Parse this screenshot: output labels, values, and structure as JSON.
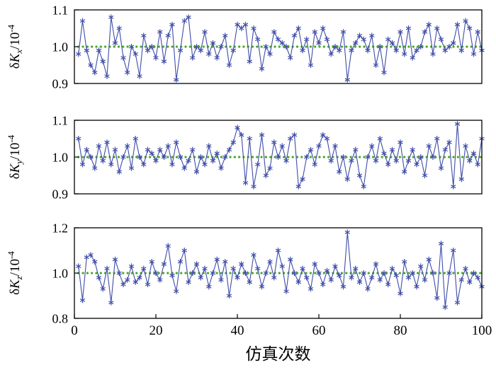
{
  "colors": {
    "line": "#3f4da8",
    "marker": "#3f4da8",
    "reference": "#4ea72e",
    "axis": "#000000",
    "background": "#ffffff"
  },
  "chart_data": [
    {
      "type": "line",
      "ylabel": {
        "prefix": "δ",
        "symbol": "K",
        "sub": "x",
        "unit": "/10",
        "exp": "-4"
      },
      "ylim": [
        0.9,
        1.1
      ],
      "yticks": [
        0.9,
        1.0,
        1.1
      ],
      "x_range": [
        0,
        100
      ],
      "xticks": [
        0,
        20,
        40,
        60,
        80,
        100
      ],
      "show_x_axis": false,
      "xlabel": "",
      "reference_value": 1.0,
      "series": [
        {
          "name": "deltaKx",
          "values": [
            0.98,
            1.07,
            0.99,
            0.95,
            0.93,
            0.99,
            0.96,
            0.92,
            1.08,
            1.01,
            1.05,
            0.97,
            0.93,
            1.0,
            0.98,
            0.92,
            1.03,
            0.99,
            1.0,
            0.97,
            1.04,
            0.96,
            1.03,
            1.06,
            0.91,
            0.99,
            1.07,
            1.08,
            0.97,
            1.0,
            0.99,
            1.04,
            0.98,
            1.01,
            0.97,
            1.0,
            1.03,
            0.95,
            0.99,
            1.06,
            1.05,
            1.06,
            0.96,
            1.05,
            1.02,
            0.94,
            1.0,
            0.98,
            1.04,
            1.02,
            1.01,
            1.0,
            0.97,
            1.03,
            1.05,
            0.99,
            1.02,
            0.95,
            1.04,
            1.01,
            1.05,
            1.02,
            0.98,
            1.0,
            0.99,
            1.04,
            0.91,
            0.99,
            1.01,
            1.03,
            1.02,
            0.99,
            1.03,
            0.95,
            1.0,
            0.93,
            1.02,
            1.01,
            0.99,
            1.04,
            0.98,
            1.05,
            0.97,
            0.99,
            1.0,
            1.04,
            1.06,
            0.98,
            1.05,
            1.02,
            0.99,
            1.0,
            1.01,
            1.06,
            0.99,
            1.07,
            1.05,
            0.98,
            1.04,
            0.99
          ]
        }
      ]
    },
    {
      "type": "line",
      "ylabel": {
        "prefix": "δ",
        "symbol": "K",
        "sub": "y",
        "unit": "/10",
        "exp": "-4"
      },
      "ylim": [
        0.9,
        1.1
      ],
      "yticks": [
        0.9,
        1.0,
        1.1
      ],
      "x_range": [
        0,
        100
      ],
      "xticks": [
        0,
        20,
        40,
        60,
        80,
        100
      ],
      "show_x_axis": false,
      "xlabel": "",
      "reference_value": 1.0,
      "series": [
        {
          "name": "deltaKy",
          "values": [
            1.05,
            0.98,
            1.02,
            1.0,
            0.97,
            1.03,
            0.99,
            1.04,
            0.98,
            1.02,
            0.96,
            1.0,
            1.03,
            0.97,
            1.05,
            1.0,
            0.98,
            1.02,
            1.01,
            0.99,
            1.02,
            1.0,
            1.03,
            0.98,
            1.04,
            1.0,
            0.97,
            0.99,
            1.02,
            0.96,
            1.0,
            0.98,
            1.03,
            0.99,
            1.01,
            0.97,
            1.0,
            1.02,
            1.04,
            1.08,
            1.06,
            0.93,
            1.05,
            0.92,
            0.98,
            1.06,
            0.95,
            0.97,
            1.04,
            1.0,
            1.03,
            0.99,
            1.05,
            1.06,
            0.92,
            0.94,
            1.0,
            1.02,
            0.98,
            1.03,
            1.06,
            1.05,
            0.99,
            1.03,
            0.96,
            1.0,
            0.94,
            0.99,
            1.02,
            0.95,
            0.92,
            1.0,
            1.03,
            0.99,
            1.05,
            1.01,
            0.98,
            1.02,
            0.99,
            1.04,
            0.96,
            0.99,
            1.02,
            0.98,
            1.0,
            0.95,
            1.03,
            1.0,
            1.05,
            0.97,
            1.02,
            1.04,
            0.92,
            1.09,
            0.94,
            1.03,
            0.99,
            1.01,
            0.98,
            1.05
          ]
        }
      ]
    },
    {
      "type": "line",
      "ylabel": {
        "prefix": "δ",
        "symbol": "K",
        "sub": "z",
        "unit": "/10",
        "exp": "-4"
      },
      "ylim": [
        0.8,
        1.2
      ],
      "yticks": [
        0.8,
        1.0,
        1.2
      ],
      "x_range": [
        0,
        100
      ],
      "xticks": [
        0,
        20,
        40,
        60,
        80,
        100
      ],
      "show_x_axis": true,
      "xlabel": "仿真次数",
      "reference_value": 1.0,
      "series": [
        {
          "name": "deltaKz",
          "values": [
            1.03,
            0.88,
            1.07,
            1.08,
            1.05,
            0.98,
            0.93,
            1.02,
            0.87,
            1.06,
            1.0,
            0.95,
            0.97,
            1.03,
            0.96,
            0.98,
            1.02,
            0.95,
            1.05,
            1.0,
            0.97,
            1.04,
            1.12,
            0.99,
            0.92,
            1.05,
            1.1,
            0.96,
            1.0,
            1.04,
            0.98,
            1.02,
            0.94,
            1.0,
            1.06,
            0.97,
            1.05,
            0.9,
            1.02,
            0.98,
            1.04,
            1.0,
            0.96,
            1.08,
            1.02,
            0.94,
            1.0,
            1.05,
            0.98,
            1.1,
            1.03,
            0.92,
            1.06,
            1.0,
            0.96,
            1.02,
            0.98,
            0.93,
            1.04,
            1.0,
            0.95,
            1.01,
            0.97,
            1.03,
            0.99,
            0.94,
            1.18,
            0.98,
            1.02,
            0.96,
            1.0,
            0.93,
            0.98,
            1.04,
            0.97,
            1.0,
            0.95,
            1.02,
            0.99,
            0.91,
            1.05,
            0.98,
            1.0,
            0.94,
            1.03,
            0.97,
            1.06,
            1.0,
            0.89,
            1.13,
            0.85,
            1.0,
            1.1,
            0.87,
            0.97,
            1.02,
            0.96,
            1.0,
            0.98,
            0.94
          ]
        }
      ]
    }
  ]
}
